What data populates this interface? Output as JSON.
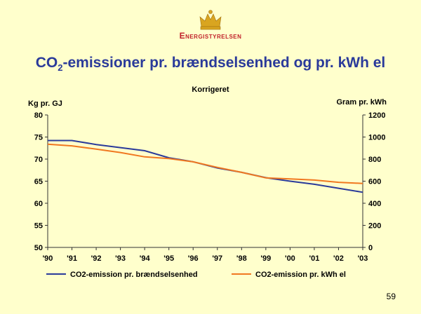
{
  "logo": {
    "text": "Energistyrelsen",
    "icon": "crown-icon",
    "color": "#c0202a"
  },
  "title": {
    "main": "CO",
    "sub": "2",
    "rest": "-emissioner pr. brændselsenhed og pr. kWh el"
  },
  "page_number": "59",
  "chart_data": {
    "type": "line",
    "subtitle": "Korrigeret",
    "ylabel_left": "Kg pr. GJ",
    "ylabel_right": "Gram pr. kWh",
    "categories": [
      "'90",
      "'91",
      "'92",
      "'93",
      "'94",
      "'95",
      "'96",
      "'97",
      "'98",
      "'99",
      "'00",
      "'01",
      "'02",
      "'03"
    ],
    "ylim_left": [
      50,
      80
    ],
    "yticks_left": [
      50,
      55,
      60,
      65,
      70,
      75,
      80
    ],
    "ylim_right": [
      0,
      1200
    ],
    "yticks_right": [
      0,
      200,
      400,
      600,
      800,
      1000,
      1200
    ],
    "grid": false,
    "legend_position": "bottom",
    "series": [
      {
        "name": "CO2-emission pr. brændselsenhed",
        "axis": "left",
        "color": "#2a3a9a",
        "values": [
          74.2,
          74.2,
          73.3,
          72.6,
          71.9,
          70.3,
          69.4,
          68.0,
          67.0,
          65.8,
          65.0,
          64.3,
          63.4,
          62.5
        ]
      },
      {
        "name": "CO2-emission pr. kWh el",
        "axis": "right",
        "color": "#f07820",
        "values": [
          935,
          920,
          890,
          860,
          820,
          805,
          775,
          725,
          680,
          630,
          620,
          610,
          590,
          580
        ]
      }
    ]
  }
}
